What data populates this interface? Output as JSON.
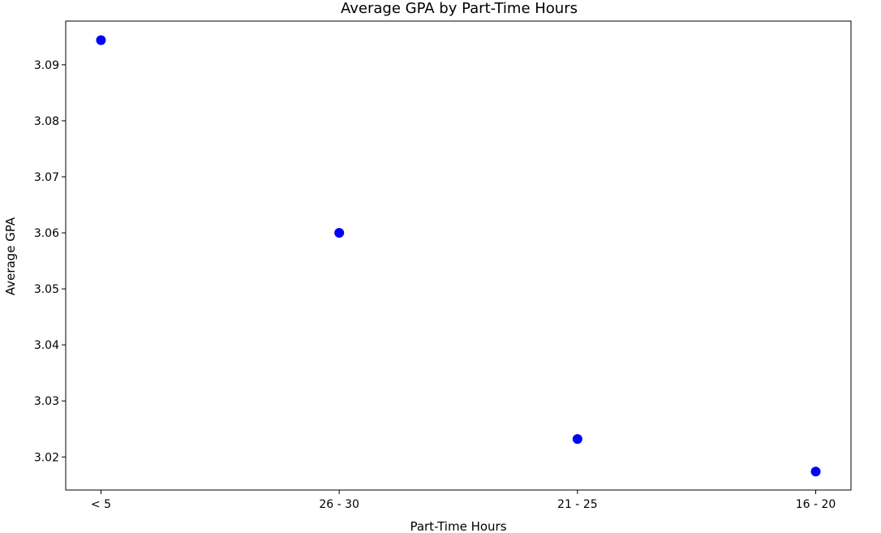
{
  "chart_data": {
    "type": "scatter",
    "title": "Average GPA by Part-Time Hours",
    "xlabel": "Part-Time Hours",
    "ylabel": "Average GPA",
    "categories": [
      "< 5",
      "26 - 30",
      "21 - 25",
      "16 - 20"
    ],
    "values": [
      3.0944,
      3.06,
      3.0232,
      3.0174
    ],
    "ylim": [
      3.0141,
      3.0978
    ],
    "yticks": [
      "3.02",
      "3.03",
      "3.04",
      "3.05",
      "3.06",
      "3.07",
      "3.08",
      "3.09"
    ],
    "grid": false,
    "marker_color": "#0000ff"
  }
}
